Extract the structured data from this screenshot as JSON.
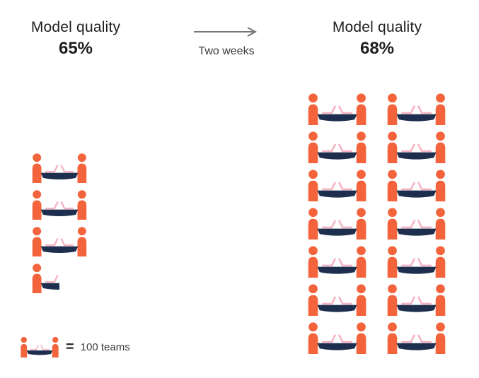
{
  "left_panel": {
    "title": "Model quality",
    "value": "65%"
  },
  "transition": {
    "label": "Two weeks"
  },
  "right_panel": {
    "title": "Model quality",
    "value": "68%"
  },
  "legend": {
    "equals": "=",
    "label": "100 teams"
  },
  "colors": {
    "person": "#F4643C",
    "table": "#1D2E4E",
    "laptop": "#F5B4C4",
    "arrow": "#757575",
    "text": "#1F1F1F"
  },
  "chart_data": {
    "type": "pictogram",
    "title": "Model quality before and after",
    "unit_label": "100 teams",
    "teams_per_icon": 100,
    "transition_label": "Two weeks",
    "groups": [
      {
        "title": "Model quality",
        "value": "65%",
        "icon_count": 3.5,
        "approx_teams": 350,
        "columns": 1
      },
      {
        "title": "Model quality",
        "value": "68%",
        "icon_count": 14,
        "approx_teams": 1400,
        "columns": 2
      }
    ],
    "legend": "1 icon = 100 teams"
  }
}
